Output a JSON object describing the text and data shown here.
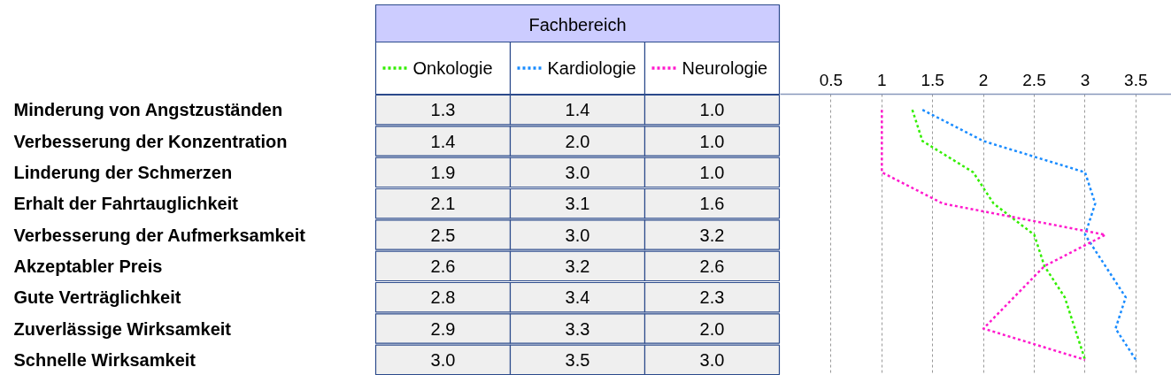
{
  "chart_data": {
    "type": "line",
    "orientation": "horizontal",
    "legend_title": "Fachbereich",
    "categories": [
      "Minderung von Angstzuständen",
      "Verbesserung der Konzentration",
      "Linderung der Schmerzen",
      "Erhalt der Fahrtauglichkeit",
      "Verbesserung der Aufmerksamkeit",
      "Akzeptabler Preis",
      "Gute Verträglichkeit",
      "Zuverlässige Wirksamkeit",
      "Schnelle Wirksamkeit"
    ],
    "series": [
      {
        "name": "Onkologie",
        "color": "#33ee00",
        "axis": "x2",
        "values": [
          1.3,
          1.4,
          1.9,
          2.1,
          2.5,
          2.6,
          2.8,
          2.9,
          3.0
        ],
        "value_labels": [
          "1.3",
          "1.4",
          "1.9",
          "2.1",
          "2.5",
          "2.6",
          "2.8",
          "2.9",
          "3.0"
        ]
      },
      {
        "name": "Kardiologie",
        "color": "#1a8cff",
        "axis": "x2",
        "values": [
          1.4,
          2.0,
          3.0,
          3.1,
          3.0,
          3.2,
          3.4,
          3.3,
          3.5
        ],
        "value_labels": [
          "1.4",
          "2.0",
          "3.0",
          "3.1",
          "3.0",
          "3.2",
          "3.4",
          "3.3",
          "3.5"
        ]
      },
      {
        "name": "Neurologie",
        "color": "#ff1acd",
        "axis": "x2",
        "values": [
          1.0,
          1.0,
          1.0,
          1.6,
          3.2,
          2.6,
          2.3,
          2.0,
          3.0
        ],
        "value_labels": [
          "1.0",
          "1.0",
          "1.0",
          "1.6",
          "3.2",
          "2.6",
          "2.3",
          "2.0",
          "3.0"
        ]
      }
    ],
    "x2lim": [
      0,
      3.85
    ],
    "x2ticks": [
      0.5,
      1,
      1.5,
      2,
      2.5,
      3,
      3.5
    ],
    "grid": "x",
    "legend": "top left",
    "line_style": "dotted"
  }
}
